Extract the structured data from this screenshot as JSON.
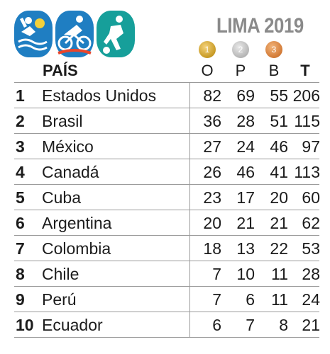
{
  "title": "LIMA 2019",
  "icons": [
    "water-polo-icon",
    "cycling-icon",
    "football-icon"
  ],
  "colors": {
    "icon_blue": "#1f7ec2",
    "icon_teal": "#169f9a",
    "title_gray": "#8a8a8a",
    "gold": "#c79a25",
    "silver": "#b5b5b5",
    "bronze": "#d27a36"
  },
  "medals": {
    "gold_number": "1",
    "silver_number": "2",
    "bronze_number": "3"
  },
  "header": {
    "country": "PAÍS",
    "gold": "O",
    "silver": "P",
    "bronze": "B",
    "total": "T"
  },
  "rows": [
    {
      "rank": "1",
      "country": "Estados Unidos",
      "gold": "82",
      "silver": "69",
      "bronze": "55",
      "total": "206"
    },
    {
      "rank": "2",
      "country": "Brasil",
      "gold": "36",
      "silver": "28",
      "bronze": "51",
      "total": "115"
    },
    {
      "rank": "3",
      "country": "México",
      "gold": "27",
      "silver": "24",
      "bronze": "46",
      "total": "97"
    },
    {
      "rank": "4",
      "country": "Canadá",
      "gold": "26",
      "silver": "46",
      "bronze": "41",
      "total": "113"
    },
    {
      "rank": "5",
      "country": "Cuba",
      "gold": "23",
      "silver": "17",
      "bronze": "20",
      "total": "60"
    },
    {
      "rank": "6",
      "country": "Argentina",
      "gold": "20",
      "silver": "21",
      "bronze": "21",
      "total": "62"
    },
    {
      "rank": "7",
      "country": "Colombia",
      "gold": "18",
      "silver": "13",
      "bronze": "22",
      "total": "53"
    },
    {
      "rank": "8",
      "country": "Chile",
      "gold": "7",
      "silver": "10",
      "bronze": "11",
      "total": "28"
    },
    {
      "rank": "9",
      "country": "Perú",
      "gold": "7",
      "silver": "6",
      "bronze": "11",
      "total": "24"
    },
    {
      "rank": "10",
      "country": "Ecuador",
      "gold": "6",
      "silver": "7",
      "bronze": "8",
      "total": "21"
    }
  ]
}
